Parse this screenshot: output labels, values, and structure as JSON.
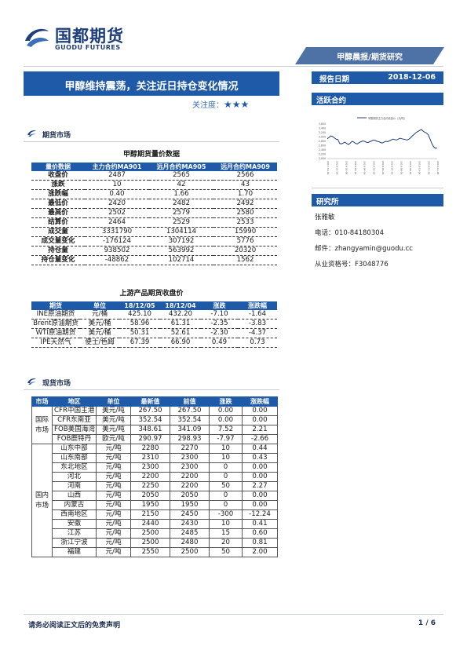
{
  "brand": {
    "name_cn": "国都期货",
    "name_en": "GUODU FUTURES"
  },
  "report_series": "甲醇晨报/期货研究",
  "title": "甲醇维持震荡，关注近日持仓变化情况",
  "attention": {
    "label": "关注度：",
    "stars": "★★★"
  },
  "report_date": {
    "label": "报告日期",
    "value": "2018-12-06"
  },
  "active_contract": {
    "label": "活跃合约",
    "legend": "甲醇期货主力合约收盘价（元/吨）"
  },
  "research": {
    "heading": "研究所",
    "analyst": "张雅敏",
    "phone": "电话：010-84180304",
    "email": "邮件：zhangyamin@guodu.cc",
    "license": "从业资格号：F3048776"
  },
  "sections": {
    "futures": "期货市场",
    "spot": "现货市场"
  },
  "futures_table": {
    "caption": "甲醇期货量价数据",
    "headers": [
      "量价数据",
      "主力合约MA901",
      "远月合约MA905",
      "远月合约MA909"
    ],
    "rows": [
      [
        "收盘价",
        "2487",
        "2565",
        "2566"
      ],
      [
        "涨跌",
        "10",
        "42",
        "43"
      ],
      [
        "涨跌幅",
        "0.40",
        "1.66",
        "1.70"
      ],
      [
        "最低价",
        "2420",
        "2482",
        "2492"
      ],
      [
        "最高价",
        "2502",
        "2579",
        "2580"
      ],
      [
        "结算价",
        "2464",
        "2529",
        "2533"
      ],
      [
        "成交量",
        "3331790",
        "1304114",
        "15990"
      ],
      [
        "成交量变化",
        "-176124",
        "307192",
        "5776"
      ],
      [
        "持仓量",
        "938502",
        "563992",
        "20320"
      ],
      [
        "持仓量变化",
        "-48862",
        "102714",
        "1562"
      ]
    ]
  },
  "upstream_table": {
    "caption": "上游产品期货收盘价",
    "headers": [
      "期货",
      "单位",
      "18/12/05",
      "18/12/04",
      "涨跌",
      "涨跌幅"
    ],
    "rows": [
      [
        "INE原油期货",
        "元/桶",
        "425.10",
        "432.20",
        "-7.10",
        "-1.64"
      ],
      [
        "Brent原油期货",
        "美元/桶",
        "58.96",
        "61.31",
        "-2.35",
        "-3.83"
      ],
      [
        "WTI原油期货",
        "美元/桶",
        "50.31",
        "52.61",
        "-2.30",
        "-4.37"
      ],
      [
        "IPE天然气",
        "便士/色姆",
        "67.39",
        "66.90",
        "0.49",
        "0.73"
      ]
    ]
  },
  "spot_table": {
    "headers": [
      "市场",
      "地区",
      "单位",
      "最新值",
      "前值",
      "涨跌",
      "涨跌幅"
    ],
    "groups": [
      {
        "market": "国际市场",
        "rows": [
          [
            "CFR中国主港",
            "美元/吨",
            "267.50",
            "267.50",
            "0.00",
            "0.00"
          ],
          [
            "CFR东南亚",
            "美元/吨",
            "352.54",
            "352.54",
            "0.00",
            "0.00"
          ],
          [
            "FOB美国海湾",
            "美元/吨",
            "348.61",
            "341.09",
            "7.52",
            "2.21"
          ],
          [
            "FOB鹿特丹",
            "欧元/吨",
            "290.97",
            "298.93",
            "-7.97",
            "-2.66"
          ]
        ]
      },
      {
        "market": "国内市场",
        "rows": [
          [
            "山东中部",
            "元/吨",
            "2280",
            "2270",
            "10",
            "0.44"
          ],
          [
            "山东南部",
            "元/吨",
            "2310",
            "2300",
            "10",
            "0.43"
          ],
          [
            "东北地区",
            "元/吨",
            "2300",
            "2300",
            "0",
            "0.00"
          ],
          [
            "河北",
            "元/吨",
            "2200",
            "2200",
            "0",
            "0.00"
          ],
          [
            "河南",
            "元/吨",
            "2250",
            "2200",
            "50",
            "2.27"
          ],
          [
            "山西",
            "元/吨",
            "2050",
            "2050",
            "0",
            "0.00"
          ],
          [
            "内蒙古",
            "元/吨",
            "1950",
            "1950",
            "0",
            "0.00"
          ],
          [
            "西南地区",
            "元/吨",
            "2150",
            "2450",
            "-300",
            "-12.24"
          ],
          [
            "安徽",
            "元/吨",
            "2440",
            "2430",
            "10",
            "0.41"
          ],
          [
            "江苏",
            "元/吨",
            "2500",
            "2485",
            "15",
            "0.60"
          ],
          [
            "浙江宁波",
            "元/吨",
            "2500",
            "2480",
            "20",
            "0.81"
          ],
          [
            "福建",
            "元/吨",
            "2550",
            "2500",
            "50",
            "2.00"
          ]
        ]
      }
    ]
  },
  "footer": {
    "disclaimer": "请务必阅读正文后的免责声明",
    "page": "1 / 6"
  },
  "chart_data": {
    "type": "line",
    "title": "",
    "legend": "甲醇期货主力合约收盘价（元/吨）",
    "ylim": [
      2000,
      3600
    ],
    "yticks": [
      "2,000",
      "2,200",
      "2,400",
      "2,600",
      "2,800",
      "3,000",
      "3,200",
      "3,400",
      "3,600"
    ],
    "xticks": [
      "2017-12-06",
      "2018-01-06",
      "2018-02-06",
      "2018-03-06",
      "2018-04-06",
      "2018-05-06",
      "2018-06-06",
      "2018-07-06",
      "2018-08-06",
      "2018-09-06",
      "2018-10-06",
      "2018-11-06",
      "2018-12-06"
    ],
    "values": [
      2920,
      2980,
      3050,
      3020,
      2960,
      2900,
      2880,
      2700,
      2680,
      2720,
      2760,
      2700,
      2650,
      2720,
      2800,
      2760,
      2700,
      2680,
      2740,
      2780,
      2820,
      2800,
      2760,
      2740,
      2780,
      2820,
      2860,
      2840,
      2800,
      2780,
      2750,
      2720,
      2760,
      2800,
      2780,
      2820,
      2860,
      2900,
      2880,
      2860,
      2900,
      2940,
      2920,
      2900,
      2880,
      2860,
      2900,
      2960,
      3050,
      3120,
      3200,
      3250,
      3300,
      3350,
      3280,
      3220,
      3180,
      3100,
      2900,
      2700,
      2550,
      2480,
      2487
    ]
  }
}
